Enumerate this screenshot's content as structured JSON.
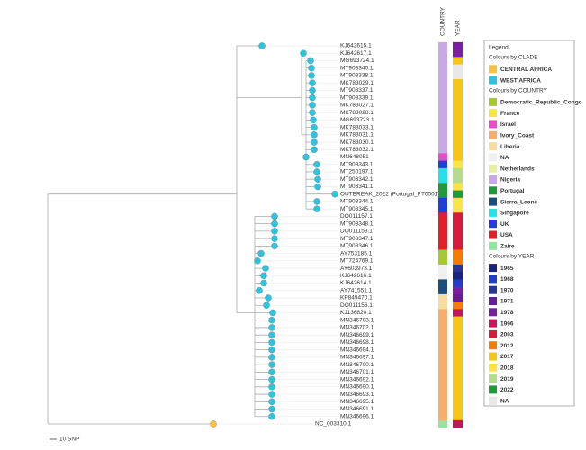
{
  "tree": {
    "leaves": [
      {
        "label": "KJ642615.1",
        "tip_color": "#2ec4de",
        "country_color": "#c9a8e6",
        "year_color": "#7b1fa2"
      },
      {
        "label": "KJ642617.1",
        "tip_color": "#2ec4de",
        "country_color": "#c9a8e6",
        "year_color": "#7b1fa2"
      },
      {
        "label": "MG693724.1",
        "tip_color": "#2ec4de",
        "country_color": "#c9a8e6",
        "year_color": "#f5c518"
      },
      {
        "label": "MT903340.1",
        "tip_color": "#2ec4de",
        "country_color": "#c9a8e6",
        "year_color": "#e8e8e8"
      },
      {
        "label": "MT903338.1",
        "tip_color": "#2ec4de",
        "country_color": "#c9a8e6",
        "year_color": "#e8e8e8"
      },
      {
        "label": "MK783029.1",
        "tip_color": "#2ec4de",
        "country_color": "#c9a8e6",
        "year_color": "#f5c518"
      },
      {
        "label": "MT903337.1",
        "tip_color": "#2ec4de",
        "country_color": "#c9a8e6",
        "year_color": "#f5c518"
      },
      {
        "label": "MT903339.1",
        "tip_color": "#2ec4de",
        "country_color": "#c9a8e6",
        "year_color": "#f5c518"
      },
      {
        "label": "MK783027.1",
        "tip_color": "#2ec4de",
        "country_color": "#c9a8e6",
        "year_color": "#f5c518"
      },
      {
        "label": "MK783028.1",
        "tip_color": "#2ec4de",
        "country_color": "#c9a8e6",
        "year_color": "#f5c518"
      },
      {
        "label": "MG693723.1",
        "tip_color": "#2ec4de",
        "country_color": "#c9a8e6",
        "year_color": "#f5c518"
      },
      {
        "label": "MK783033.1",
        "tip_color": "#2ec4de",
        "country_color": "#c9a8e6",
        "year_color": "#f5c518"
      },
      {
        "label": "MK783031.1",
        "tip_color": "#2ec4de",
        "country_color": "#c9a8e6",
        "year_color": "#f5c518"
      },
      {
        "label": "MK783030.1",
        "tip_color": "#2ec4de",
        "country_color": "#c9a8e6",
        "year_color": "#f5c518"
      },
      {
        "label": "MK783032.1",
        "tip_color": "#2ec4de",
        "country_color": "#c9a8e6",
        "year_color": "#f5c518"
      },
      {
        "label": "MN648051",
        "tip_color": "#2ec4de",
        "country_color": "#e84cc8",
        "year_color": "#f5c518"
      },
      {
        "label": "MT903343.1",
        "tip_color": "#2ec4de",
        "country_color": "#1f3fd6",
        "year_color": "#fbe34a"
      },
      {
        "label": "MT250197.1",
        "tip_color": "#2ec4de",
        "country_color": "#27e0e8",
        "year_color": "#b5dc8a"
      },
      {
        "label": "MT903342.1",
        "tip_color": "#2ec4de",
        "country_color": "#27e0e8",
        "year_color": "#b5dc8a"
      },
      {
        "label": "MT903341.1",
        "tip_color": "#2ec4de",
        "country_color": "#1e9a3a",
        "year_color": "#fbe34a"
      },
      {
        "label": "OUTBREAK_2022 (Portugal_PT0001)",
        "tip_color": "#2ec4de",
        "country_color": "#1e9a3a",
        "year_color": "#1e9a3a"
      },
      {
        "label": "MT903344.1",
        "tip_color": "#2ec4de",
        "country_color": "#1f3fd6",
        "year_color": "#fbe34a"
      },
      {
        "label": "MT903345.1",
        "tip_color": "#2ec4de",
        "country_color": "#1f3fd6",
        "year_color": "#fbe34a"
      },
      {
        "label": "DQ011157.1",
        "tip_color": "#2ec4de",
        "country_color": "#e0202a",
        "year_color": "#d81b3a"
      },
      {
        "label": "MT903348.1",
        "tip_color": "#2ec4de",
        "country_color": "#e0202a",
        "year_color": "#d81b3a"
      },
      {
        "label": "DQ011153.1",
        "tip_color": "#2ec4de",
        "country_color": "#e0202a",
        "year_color": "#d81b3a"
      },
      {
        "label": "MT903347.1",
        "tip_color": "#2ec4de",
        "country_color": "#e0202a",
        "year_color": "#d81b3a"
      },
      {
        "label": "MT903346.1",
        "tip_color": "#2ec4de",
        "country_color": "#e0202a",
        "year_color": "#d81b3a"
      },
      {
        "label": "AY753185.1",
        "tip_color": "#2ec4de",
        "country_color": "#a8c63a",
        "year_color": "#f57c00"
      },
      {
        "label": "MT724769.1",
        "tip_color": "#2ec4de",
        "country_color": "#a8c63a",
        "year_color": "#f57c00"
      },
      {
        "label": "AY603973.1",
        "tip_color": "#2ec4de",
        "country_color": "#f0f0f0",
        "year_color": "#283593"
      },
      {
        "label": "KJ642616.1",
        "tip_color": "#2ec4de",
        "country_color": "#f0f0f0",
        "year_color": "#1a237e"
      },
      {
        "label": "KJ642614.1",
        "tip_color": "#2ec4de",
        "country_color": "#1b4f7a",
        "year_color": "#1e40c8"
      },
      {
        "label": "AY741551.1",
        "tip_color": "#2ec4de",
        "country_color": "#1b4f7a",
        "year_color": "#7b1fa2"
      },
      {
        "label": "KP849470.1",
        "tip_color": "#2ec4de",
        "country_color": "#f7dca0",
        "year_color": "#6a1b9a"
      },
      {
        "label": "DQ011156.1",
        "tip_color": "#2ec4de",
        "country_color": "#f7dca0",
        "year_color": "#f57c00"
      },
      {
        "label": "KJ136820.1",
        "tip_color": "#2ec4de",
        "country_color": "#f5ae6e",
        "year_color": "#c2185b"
      },
      {
        "label": "MN346703.1",
        "tip_color": "#2ec4de",
        "country_color": "#f5ae6e",
        "year_color": "#f5c518"
      },
      {
        "label": "MN346702.1",
        "tip_color": "#2ec4de",
        "country_color": "#f5ae6e",
        "year_color": "#f5c518"
      },
      {
        "label": "MN346699.1",
        "tip_color": "#2ec4de",
        "country_color": "#f5ae6e",
        "year_color": "#f5c518"
      },
      {
        "label": "MN346698.1",
        "tip_color": "#2ec4de",
        "country_color": "#f5ae6e",
        "year_color": "#f5c518"
      },
      {
        "label": "MN346694.1",
        "tip_color": "#2ec4de",
        "country_color": "#f5ae6e",
        "year_color": "#f5c518"
      },
      {
        "label": "MN346697.1",
        "tip_color": "#2ec4de",
        "country_color": "#f5ae6e",
        "year_color": "#f5c518"
      },
      {
        "label": "MN346700.1",
        "tip_color": "#2ec4de",
        "country_color": "#f5ae6e",
        "year_color": "#f5c518"
      },
      {
        "label": "MN346701.1",
        "tip_color": "#2ec4de",
        "country_color": "#f5ae6e",
        "year_color": "#f5c518"
      },
      {
        "label": "MN346692.1",
        "tip_color": "#2ec4de",
        "country_color": "#f5ae6e",
        "year_color": "#f5c518"
      },
      {
        "label": "MN346690.1",
        "tip_color": "#2ec4de",
        "country_color": "#f5ae6e",
        "year_color": "#f5c518"
      },
      {
        "label": "MN346693.1",
        "tip_color": "#2ec4de",
        "country_color": "#f5ae6e",
        "year_color": "#f5c518"
      },
      {
        "label": "MN346695.1",
        "tip_color": "#2ec4de",
        "country_color": "#f5ae6e",
        "year_color": "#f5c518"
      },
      {
        "label": "MN346691.1",
        "tip_color": "#2ec4de",
        "country_color": "#f5ae6e",
        "year_color": "#f5c518"
      },
      {
        "label": "MN346696.1",
        "tip_color": "#2ec4de",
        "country_color": "#f5ae6e",
        "year_color": "#f5c518"
      },
      {
        "label": "NC_003310.1",
        "tip_color": "#f5c242",
        "country_color": "#8ee8a0",
        "year_color": "#c2185b"
      }
    ]
  },
  "columns": [
    "COUNTRY",
    "YEAR"
  ],
  "scale": "10 SNP",
  "legend": {
    "title": "Legend",
    "sections": [
      {
        "title": "Colours by CLADE",
        "items": [
          {
            "label": "CENTRAL AFRICA",
            "color": "#f5c242"
          },
          {
            "label": "WEST AFRICA",
            "color": "#2ec4de"
          }
        ]
      },
      {
        "title": "Colours by COUNTRY",
        "items": [
          {
            "label": "Democratic_Republic_Congo",
            "color": "#a8c63a"
          },
          {
            "label": "France",
            "color": "#f6e83a"
          },
          {
            "label": "Israel",
            "color": "#e84cc8"
          },
          {
            "label": "Ivory_Coast",
            "color": "#f5ae6e"
          },
          {
            "label": "Liberia",
            "color": "#f7dca0"
          },
          {
            "label": "NA",
            "color": "#f0f0f0"
          },
          {
            "label": "Netherlands",
            "color": "#e7f0a0"
          },
          {
            "label": "Nigeria",
            "color": "#c9a8e6"
          },
          {
            "label": "Portugal",
            "color": "#1e9a3a"
          },
          {
            "label": "Sierra_Leone",
            "color": "#1b4f7a"
          },
          {
            "label": "Singapore",
            "color": "#27e0e8"
          },
          {
            "label": "UK",
            "color": "#1f3fd6"
          },
          {
            "label": "USA",
            "color": "#e0202a"
          },
          {
            "label": "Zaire",
            "color": "#8ee8a0"
          }
        ]
      },
      {
        "title": "Colours by YEAR",
        "items": [
          {
            "label": "1965",
            "color": "#1a237e"
          },
          {
            "label": "1968",
            "color": "#1e40c8"
          },
          {
            "label": "1970",
            "color": "#283593"
          },
          {
            "label": "1971",
            "color": "#6a1b9a"
          },
          {
            "label": "1978",
            "color": "#7b1fa2"
          },
          {
            "label": "1996",
            "color": "#c2185b"
          },
          {
            "label": "2003",
            "color": "#d81b3a"
          },
          {
            "label": "2012",
            "color": "#f57c00"
          },
          {
            "label": "2017",
            "color": "#f5c518"
          },
          {
            "label": "2018",
            "color": "#fbe34a"
          },
          {
            "label": "2019",
            "color": "#b5dc8a"
          },
          {
            "label": "2022",
            "color": "#1e9a3a"
          },
          {
            "label": "NA",
            "color": "#e8e8e8"
          }
        ]
      }
    ]
  }
}
